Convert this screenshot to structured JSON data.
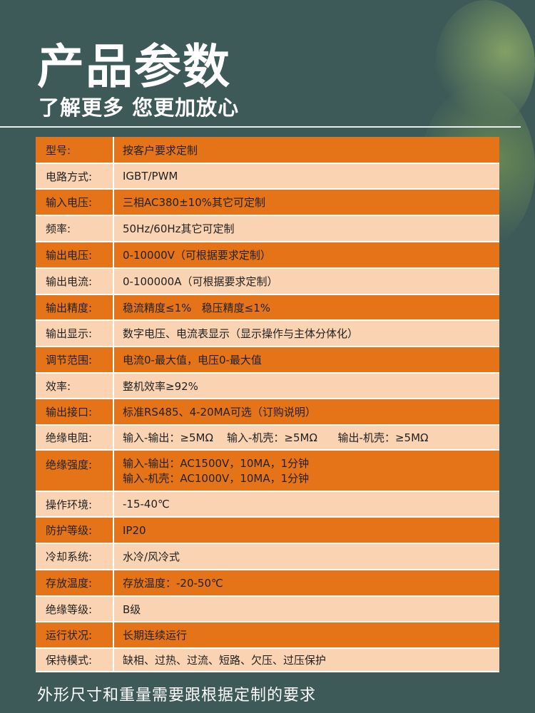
{
  "header": {
    "title": "产品参数",
    "subtitle": "了解更多 您更加放心"
  },
  "colors": {
    "background": "#3d5a58",
    "row_dark": "#e57318",
    "row_light": "#f9d3b2"
  },
  "specs": [
    {
      "label": "型号:",
      "value": [
        "按客户要求定制"
      ]
    },
    {
      "label": "电路方式:",
      "value": [
        "IGBT/PWM"
      ]
    },
    {
      "label": "输入电压:",
      "value": [
        "三相AC380±10%其它可定制"
      ]
    },
    {
      "label": "频率:",
      "value": [
        "50Hz/60Hz其它可定制"
      ]
    },
    {
      "label": "输出电压:",
      "value": [
        "0-10000V（可根据要求定制）"
      ]
    },
    {
      "label": "输出电流:",
      "value": [
        "0-100000A（可根据要求定制）"
      ]
    },
    {
      "label": "输出精度:",
      "value": [
        "稳流精度≤1%   稳压精度≤1%"
      ]
    },
    {
      "label": "输出显示:",
      "value": [
        "数字电压、电流表显示（显示操作与主体分体化）"
      ]
    },
    {
      "label": "调节范围:",
      "value": [
        "电流0-最大值，电压0-最大值"
      ]
    },
    {
      "label": "效率:",
      "value": [
        "整机效率≥92%"
      ]
    },
    {
      "label": "输出接口:",
      "value": [
        "标准RS485、4-20MA可选（订购说明）"
      ]
    },
    {
      "label": "绝缘电阻:",
      "value": [
        "输入-输出：≥5MΩ    输入-机壳：≥5MΩ      输出-机壳：≥5MΩ"
      ]
    },
    {
      "label": "绝缘强度:",
      "value": [
        "输入-输出：AC1500V，10MA，1分钟",
        "输入-机壳：AC1000V，10MA，1分钟"
      ]
    },
    {
      "label": "操作环境:",
      "value": [
        "-15-40℃"
      ]
    },
    {
      "label": "防护等级:",
      "value": [
        "IP20"
      ]
    },
    {
      "label": "冷却系统:",
      "value": [
        "水冷/风冷式"
      ]
    },
    {
      "label": "存放温度:",
      "value": [
        "存放温度：-20-50℃"
      ]
    },
    {
      "label": "绝缘等级:",
      "value": [
        "B级"
      ]
    },
    {
      "label": "运行状况:",
      "value": [
        "长期连续运行"
      ]
    },
    {
      "label": "保持模式:",
      "value": [
        "缺相、过热、过流、短路、欠压、过压保护"
      ]
    }
  ],
  "footer": {
    "note": "外形尺寸和重量需要跟根据定制的要求"
  }
}
